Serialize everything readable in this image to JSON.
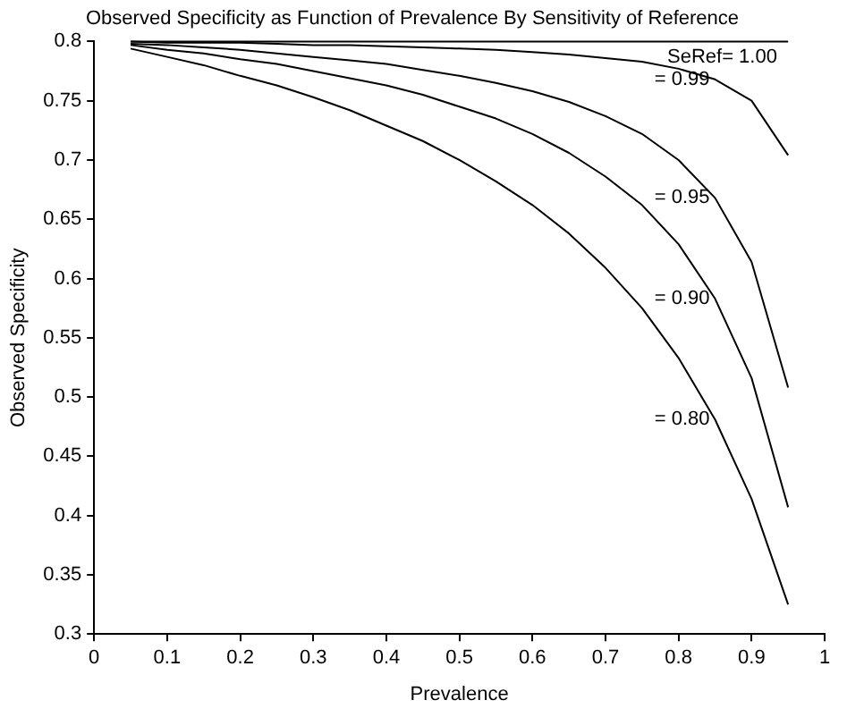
{
  "chart_data": {
    "type": "line",
    "title": "Observed Specificity as Function of Prevalence By Sensitivity of Reference",
    "xlabel": "Prevalence",
    "ylabel": "Observed Specificity",
    "x": [
      0.05,
      0.1,
      0.15,
      0.2,
      0.25,
      0.3,
      0.35,
      0.4,
      0.45,
      0.5,
      0.55,
      0.6,
      0.65,
      0.7,
      0.75,
      0.8,
      0.85,
      0.9,
      0.95
    ],
    "series": [
      {
        "name": "SeRef= 1.00",
        "color": "#000000",
        "values": [
          0.8,
          0.8,
          0.8,
          0.8,
          0.8,
          0.8,
          0.8,
          0.8,
          0.8,
          0.8,
          0.8,
          0.8,
          0.8,
          0.8,
          0.8,
          0.8,
          0.8,
          0.8,
          0.8
        ]
      },
      {
        "name": "= 0.99",
        "color": "#000000",
        "values": [
          0.8,
          0.799,
          0.799,
          0.799,
          0.798,
          0.797,
          0.797,
          0.796,
          0.795,
          0.794,
          0.793,
          0.791,
          0.789,
          0.786,
          0.783,
          0.777,
          0.768,
          0.75,
          0.704
        ]
      },
      {
        "name": "= 0.95",
        "color": "#000000",
        "values": [
          0.798,
          0.797,
          0.795,
          0.793,
          0.79,
          0.787,
          0.784,
          0.781,
          0.776,
          0.771,
          0.765,
          0.758,
          0.749,
          0.737,
          0.722,
          0.7,
          0.668,
          0.614,
          0.508
        ]
      },
      {
        "name": "= 0.90",
        "color": "#000000",
        "values": [
          0.797,
          0.793,
          0.79,
          0.785,
          0.781,
          0.775,
          0.769,
          0.763,
          0.755,
          0.745,
          0.735,
          0.722,
          0.706,
          0.686,
          0.662,
          0.629,
          0.583,
          0.516,
          0.407
        ]
      },
      {
        "name": "= 0.80",
        "color": "#000000",
        "values": [
          0.794,
          0.787,
          0.78,
          0.771,
          0.763,
          0.753,
          0.742,
          0.729,
          0.716,
          0.7,
          0.682,
          0.662,
          0.638,
          0.609,
          0.575,
          0.533,
          0.481,
          0.414,
          0.325
        ]
      }
    ],
    "xlim": [
      0,
      1
    ],
    "xticks": [
      0,
      0.1,
      0.2,
      0.3,
      0.4,
      0.5,
      0.6,
      0.7,
      0.8,
      0.9,
      1
    ],
    "ylim": [
      0.3,
      0.8
    ],
    "yticks": [
      0.3,
      0.35,
      0.4,
      0.45,
      0.5,
      0.55,
      0.6,
      0.65,
      0.7,
      0.75,
      0.8
    ],
    "grid": false,
    "legend": false,
    "marker": "none",
    "line_style": "solid"
  }
}
